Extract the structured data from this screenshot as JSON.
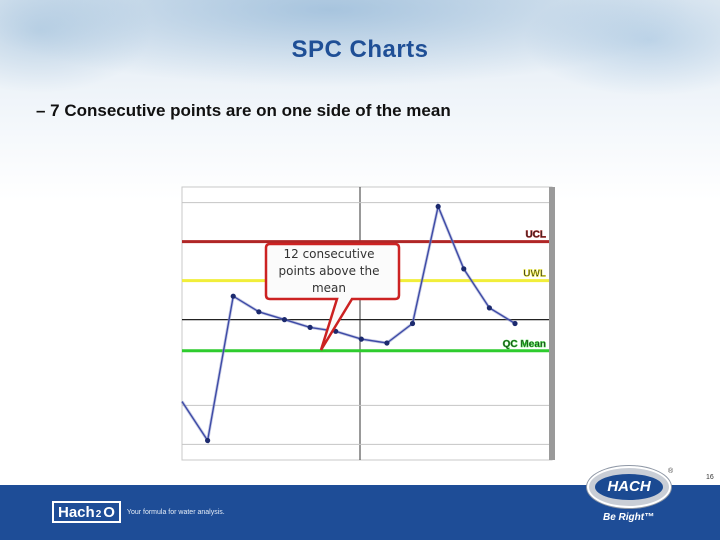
{
  "slide": {
    "title": "SPC Charts",
    "bullet": "– 7 Consecutive points are on one side of the mean",
    "page_number": "16"
  },
  "callout": {
    "line1": "12 consecutive",
    "line2": "points above the",
    "line3": "mean"
  },
  "footer": {
    "logo_text": "Hach",
    "logo_sub": "2",
    "logo_o": "O",
    "tagline": "Your formula for water analysis.",
    "brand": "HACH",
    "registered": "®",
    "slogan": "Be Right™"
  },
  "colors": {
    "ucl": "#b02626",
    "uwl": "#f1ee3a",
    "qc_mean": "#2ecc2e",
    "series": "#3d4aa6",
    "footer": "#1e4d97",
    "title": "#1f4f96"
  },
  "chart_data": {
    "type": "line",
    "x": [
      0,
      1,
      2,
      3,
      4,
      5,
      6,
      7,
      8,
      9,
      10,
      11,
      12,
      13
    ],
    "values": [
      -1.5,
      -2.5,
      1.2,
      0.8,
      0.6,
      0.4,
      0.3,
      0.1,
      0.0,
      0.5,
      3.5,
      1.9,
      0.9,
      0.5
    ],
    "y_range": [
      -3,
      4
    ],
    "control_lines": [
      {
        "label": "UCL",
        "value": 2.6
      },
      {
        "label": "UWL",
        "value": 1.6
      },
      {
        "label": "QC Mean",
        "value": -0.2
      }
    ],
    "gridlines": [
      -2.6,
      -1.6,
      0.6,
      3.6
    ],
    "annotation": "12 consecutive points above the mean"
  }
}
